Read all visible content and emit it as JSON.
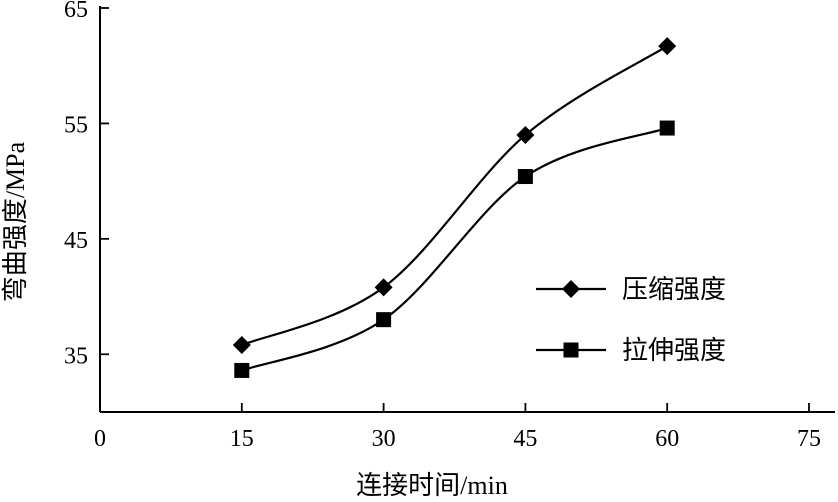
{
  "chart_data": {
    "type": "line",
    "title": "",
    "xlabel": "连接时间/min",
    "ylabel": "弯曲强度/MPa",
    "xlim": [
      0,
      75
    ],
    "ylim": [
      30,
      65
    ],
    "xticks": [
      0,
      15,
      30,
      45,
      60,
      75
    ],
    "yticks": [
      35,
      45,
      55,
      65
    ],
    "grid": false,
    "legend_position": "right",
    "series": [
      {
        "name": "压缩强度",
        "marker": "diamond",
        "x": [
          15,
          30,
          45,
          60
        ],
        "values": [
          35.8,
          40.8,
          54.0,
          61.7
        ]
      },
      {
        "name": "拉伸强度",
        "marker": "square",
        "x": [
          15,
          30,
          45,
          60
        ],
        "values": [
          33.6,
          38.0,
          50.4,
          54.6
        ]
      }
    ]
  }
}
